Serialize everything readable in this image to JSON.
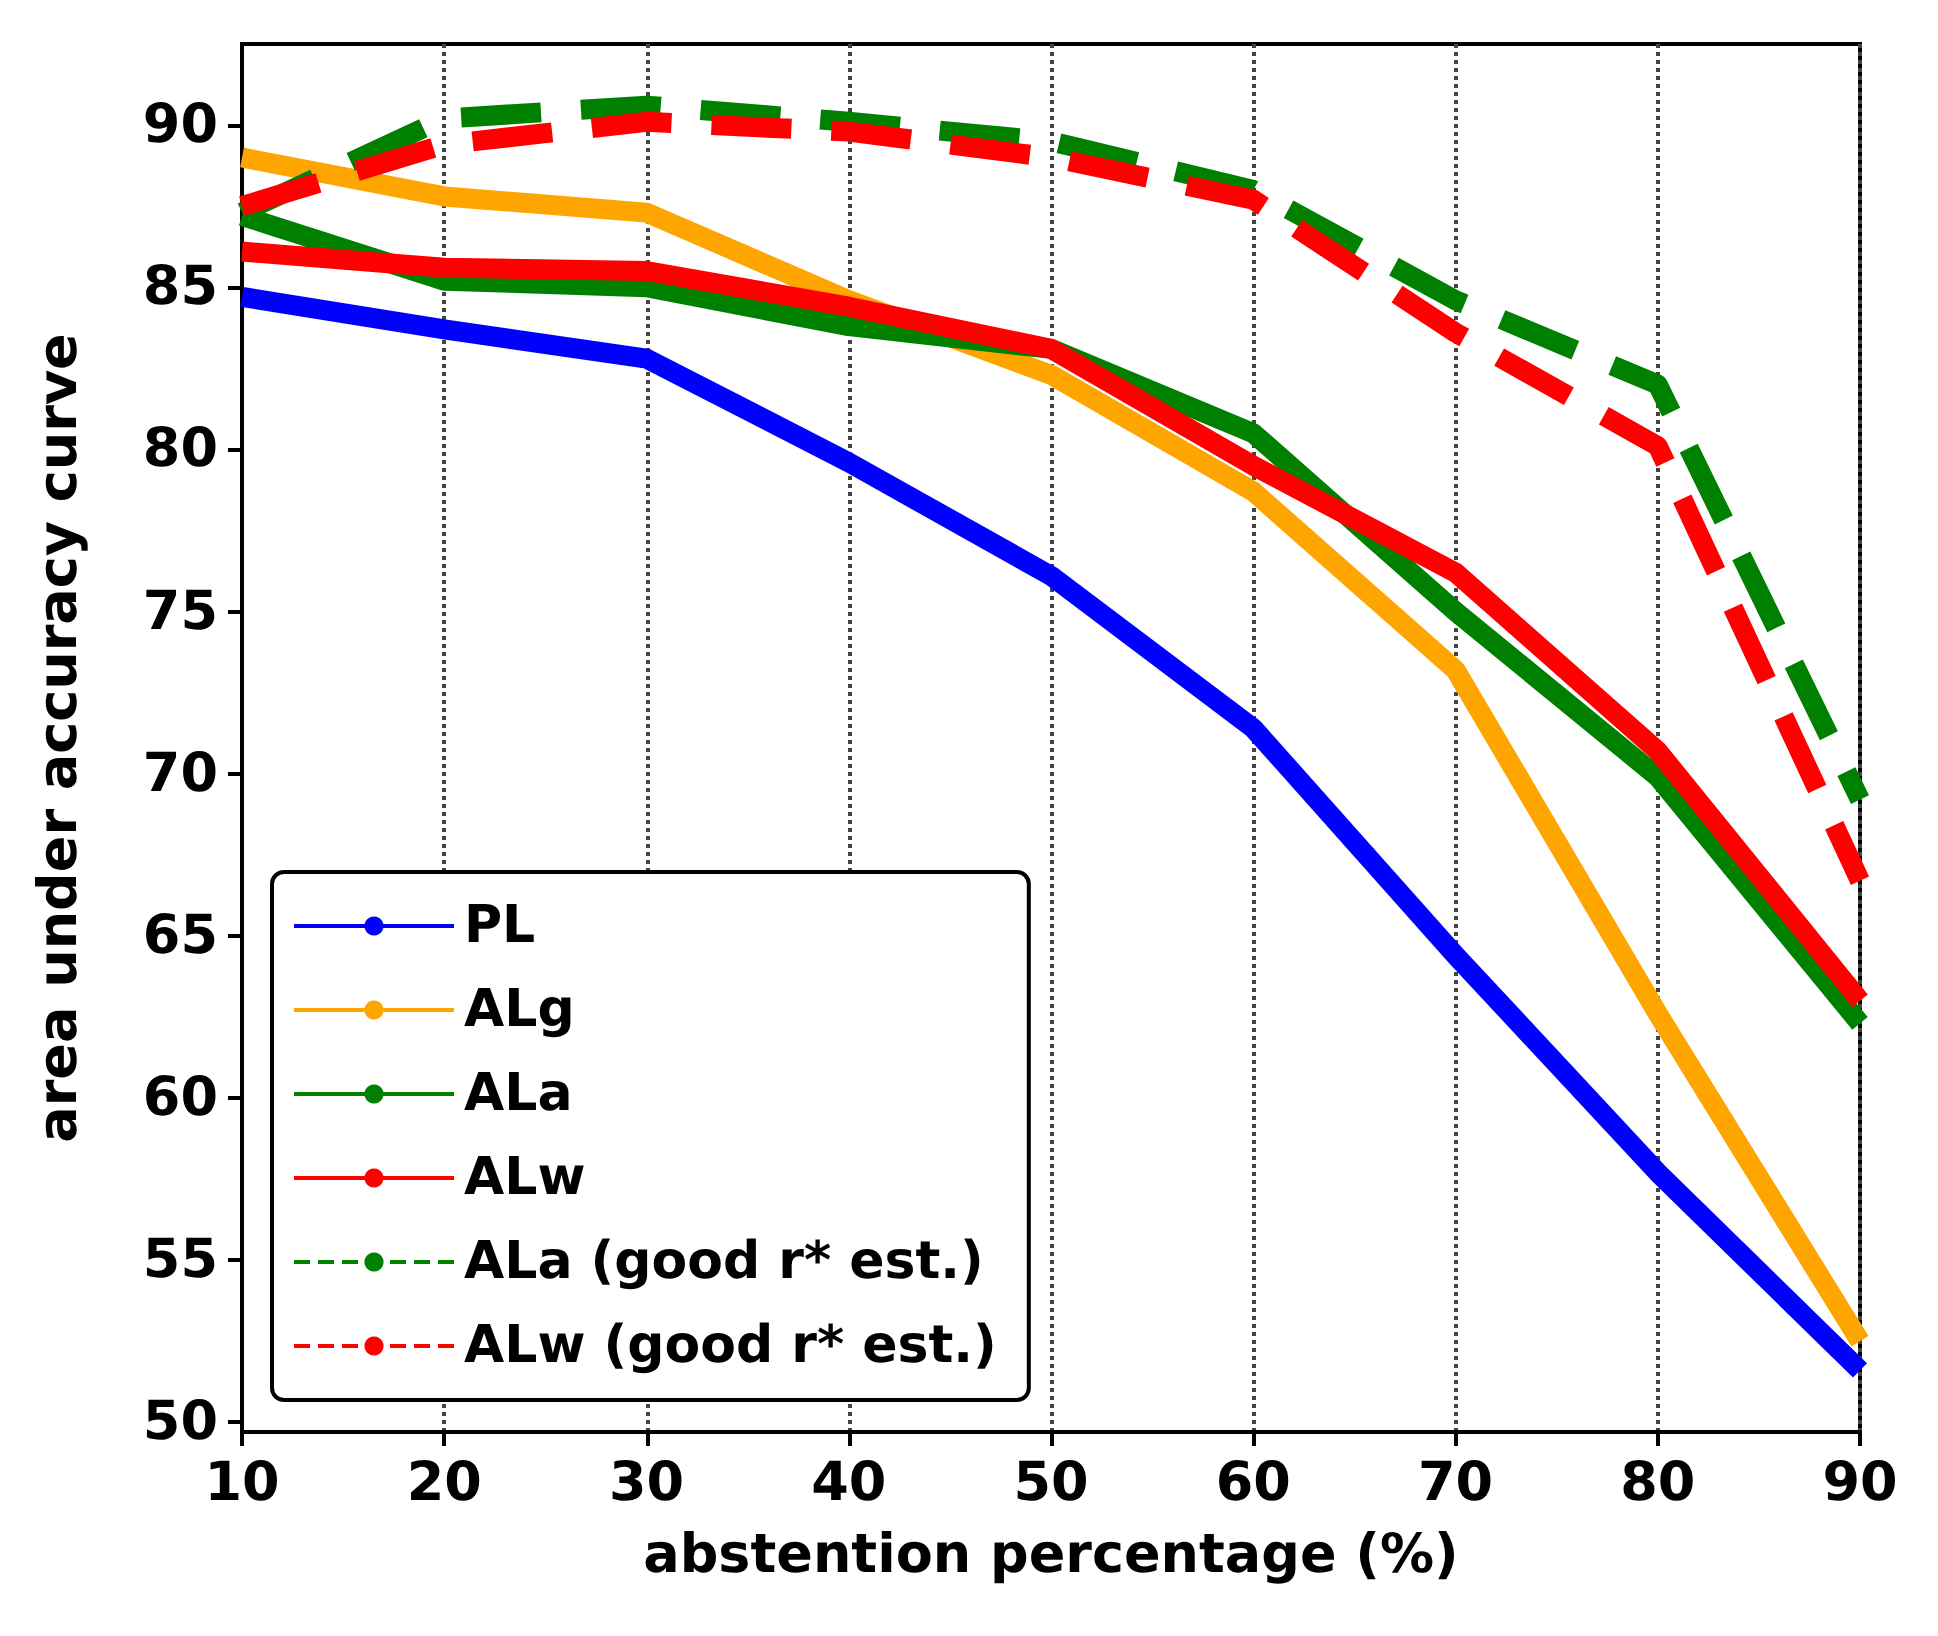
{
  "chart_data": {
    "type": "line",
    "xlabel": "abstention percentage (%)",
    "ylabel": "area under accuracy curve",
    "x": [
      10,
      20,
      30,
      40,
      50,
      60,
      70,
      80,
      90
    ],
    "xlim": [
      10,
      90
    ],
    "xticks": [
      10,
      20,
      30,
      40,
      50,
      60,
      70,
      80,
      90
    ],
    "ylim": [
      49.7,
      92.5
    ],
    "yticks": [
      50,
      55,
      60,
      65,
      70,
      75,
      80,
      85,
      90
    ],
    "grid": "x",
    "legend": "bottom left",
    "marker": "none",
    "series": [
      {
        "name": "PL",
        "color": "#0000ff",
        "line_style": "solid",
        "values": [
          84.7,
          83.7,
          82.8,
          79.6,
          76.1,
          71.4,
          64.4,
          57.7,
          51.6
        ]
      },
      {
        "name": "ALg",
        "color": "#ffa500",
        "line_style": "solid",
        "values": [
          89.0,
          87.8,
          87.3,
          84.6,
          82.3,
          78.7,
          73.2,
          62.6,
          52.5
        ]
      },
      {
        "name": "ALa",
        "color": "#008000",
        "line_style": "solid",
        "values": [
          87.2,
          85.2,
          85.0,
          83.8,
          83.1,
          80.5,
          75.0,
          69.9,
          62.3
        ]
      },
      {
        "name": "ALw",
        "color": "#ff0000",
        "line_style": "solid",
        "values": [
          86.1,
          85.6,
          85.5,
          84.4,
          83.1,
          79.5,
          76.2,
          70.7,
          63.0
        ]
      },
      {
        "name": "ALa (good r* est.)",
        "color": "#008000",
        "line_style": "dashed",
        "values": [
          87.3,
          90.2,
          90.6,
          90.1,
          89.5,
          88.0,
          84.6,
          82.0,
          69.2
        ]
      },
      {
        "name": "ALw (good r* est.)",
        "color": "#ff0000",
        "line_style": "dashed",
        "values": [
          87.5,
          89.4,
          90.1,
          89.8,
          89.0,
          87.7,
          83.6,
          80.1,
          66.7
        ]
      }
    ]
  }
}
